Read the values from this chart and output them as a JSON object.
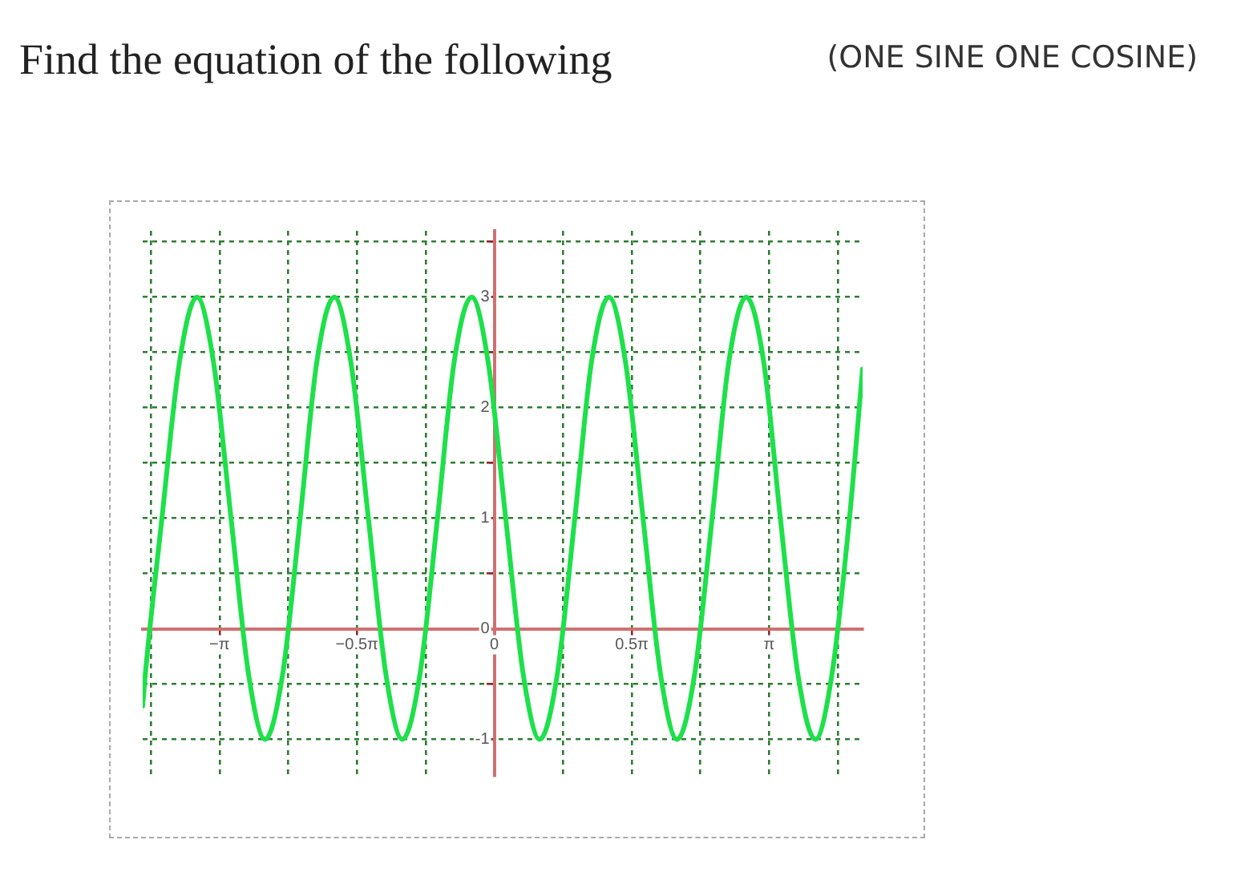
{
  "chart_data": {
    "type": "line",
    "title": "Find the equation of the following",
    "annotations": [
      "(ONE SINE ONE COSINE)"
    ],
    "xlim": [
      -4.02,
      4.21
    ],
    "ylim": [
      -1.33,
      3.6
    ],
    "xticks": [
      {
        "value": -3.927,
        "label": null
      },
      {
        "value": -3.1416,
        "label": "−π"
      },
      {
        "value": -2.3562,
        "label": null
      },
      {
        "value": -1.5708,
        "label": "−0.5π"
      },
      {
        "value": -0.7854,
        "label": null
      },
      0,
      {
        "value": 0.7854,
        "label": null
      },
      {
        "value": 1.5708,
        "label": "0.5π"
      },
      {
        "value": 2.3562,
        "label": null
      },
      {
        "value": 3.1416,
        "label": "π"
      },
      {
        "value": 3.927,
        "label": null
      }
    ],
    "yticks": [
      -1,
      {
        "value": -0.5,
        "label": null
      },
      0,
      {
        "value": 0.5,
        "label": null
      },
      1,
      {
        "value": 1.5,
        "label": null
      },
      2,
      {
        "value": 2.5,
        "label": null
      },
      3,
      {
        "value": 3.5,
        "label": null
      }
    ],
    "grid": true,
    "legend": false,
    "marker": "none",
    "line_style": "solid",
    "series": [
      {
        "color": "#1ee04a",
        "x": [
          -4.02,
          -3.99,
          -3.8,
          -3.6,
          -3.4,
          -3.21,
          -3.01,
          -2.81,
          -2.62,
          -2.42,
          -2.22,
          -2.03,
          -1.83,
          -1.64,
          -1.44,
          -1.24,
          -1.05,
          -0.85,
          -0.65,
          -0.46,
          -0.26,
          -0.07,
          0.13,
          0.33,
          0.52,
          0.72,
          0.92,
          1.11,
          1.31,
          1.5,
          1.7,
          1.9,
          2.09,
          2.29,
          2.49,
          2.68,
          2.88,
          3.08,
          3.27,
          3.47,
          3.67,
          3.86,
          4.06,
          4.21
        ],
        "values": [
          -0.7,
          -0.41,
          1,
          2.41,
          3,
          2.41,
          1,
          -0.41,
          -1,
          -0.41,
          1,
          2.41,
          3,
          2.41,
          1,
          -0.41,
          -1,
          -0.41,
          1,
          2.41,
          3,
          2.41,
          1,
          -0.41,
          -1,
          -0.41,
          1,
          2.41,
          3,
          2.41,
          1,
          -0.41,
          -1,
          -0.41,
          1,
          2.41,
          3,
          2.41,
          1,
          -0.41,
          -1,
          -0.41,
          1,
          2.35
        ]
      }
    ]
  }
}
